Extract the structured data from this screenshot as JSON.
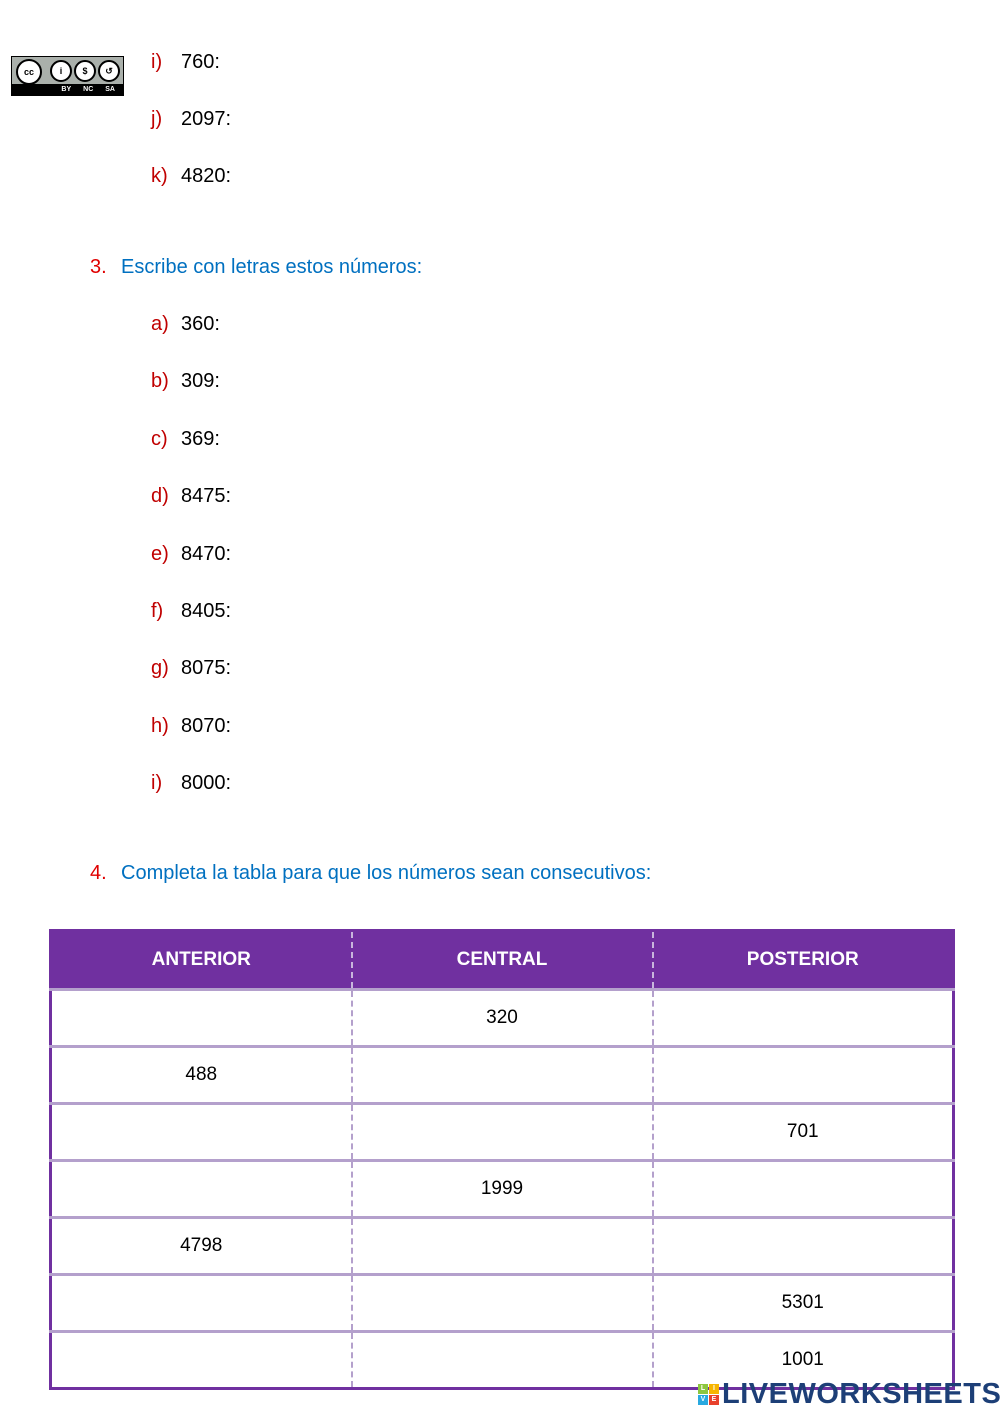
{
  "license_badge": {
    "labels": [
      "BY",
      "NC",
      "SA"
    ]
  },
  "list_top": [
    {
      "label": "i)",
      "value": "760:"
    },
    {
      "label": "j)",
      "value": "2097:"
    },
    {
      "label": "k)",
      "value": "4820:"
    }
  ],
  "exercise3": {
    "number": "3.",
    "title": "Escribe con letras estos números:",
    "items": [
      {
        "label": "a)",
        "value": "360:"
      },
      {
        "label": "b)",
        "value": "309:"
      },
      {
        "label": "c)",
        "value": "369:"
      },
      {
        "label": "d)",
        "value": "8475:"
      },
      {
        "label": "e)",
        "value": "8470:"
      },
      {
        "label": "f)",
        "value": "8405:"
      },
      {
        "label": "g)",
        "value": "8075:"
      },
      {
        "label": "h)",
        "value": "8070:"
      },
      {
        "label": "i)",
        "value": "8000:"
      }
    ]
  },
  "exercise4": {
    "number": "4.",
    "title": "Completa la tabla para que los números sean consecutivos:"
  },
  "table": {
    "headers": [
      "ANTERIOR",
      "CENTRAL",
      "POSTERIOR"
    ],
    "rows": [
      [
        "",
        "320",
        ""
      ],
      [
        "488",
        "",
        ""
      ],
      [
        "",
        "",
        "701"
      ],
      [
        "",
        "1999",
        ""
      ],
      [
        "4798",
        "",
        ""
      ],
      [
        "",
        "",
        "5301"
      ],
      [
        "",
        "",
        "1001"
      ]
    ]
  },
  "colors": {
    "accent": "#7030a0",
    "heading": "#0070c0",
    "label": "#c00000"
  },
  "footer": {
    "logo": "LIVEWORKSHEETS"
  }
}
